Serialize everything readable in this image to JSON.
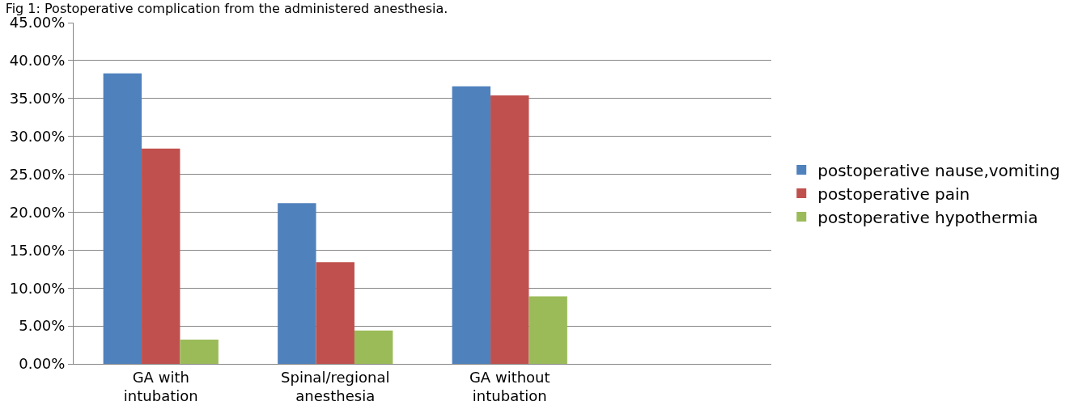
{
  "chart_data": {
    "type": "bar",
    "title": "Fig 1: Postoperative complication from the administered anesthesia.",
    "categories": [
      "GA with intubation",
      "Spinal/regional anesthesia",
      "GA without intubation",
      null
    ],
    "series": [
      {
        "name": "postoperative nause,vomiting",
        "color": "#4f81bd",
        "values": [
          38.3,
          21.2,
          36.6,
          null
        ]
      },
      {
        "name": "postoperative pain",
        "color": "#c0504d",
        "values": [
          28.4,
          13.4,
          35.4,
          null
        ]
      },
      {
        "name": "postoperative hypothermia",
        "color": "#9bbb59",
        "values": [
          3.2,
          4.4,
          8.9,
          null
        ]
      }
    ],
    "ylim": [
      0,
      45
    ],
    "yticks": [
      {
        "value": 0,
        "label": "0.00%"
      },
      {
        "value": 5,
        "label": "5.00%"
      },
      {
        "value": 10,
        "label": "10.00%"
      },
      {
        "value": 15,
        "label": "15.00%"
      },
      {
        "value": 20,
        "label": "20.00%"
      },
      {
        "value": 25,
        "label": "25.00%"
      },
      {
        "value": 30,
        "label": "30.00%"
      },
      {
        "value": 35,
        "label": "35.00%"
      },
      {
        "value": 40,
        "label": "40.00%"
      },
      {
        "value": 45,
        "label": "45.00%"
      }
    ],
    "grid": "y",
    "legend": "right"
  }
}
